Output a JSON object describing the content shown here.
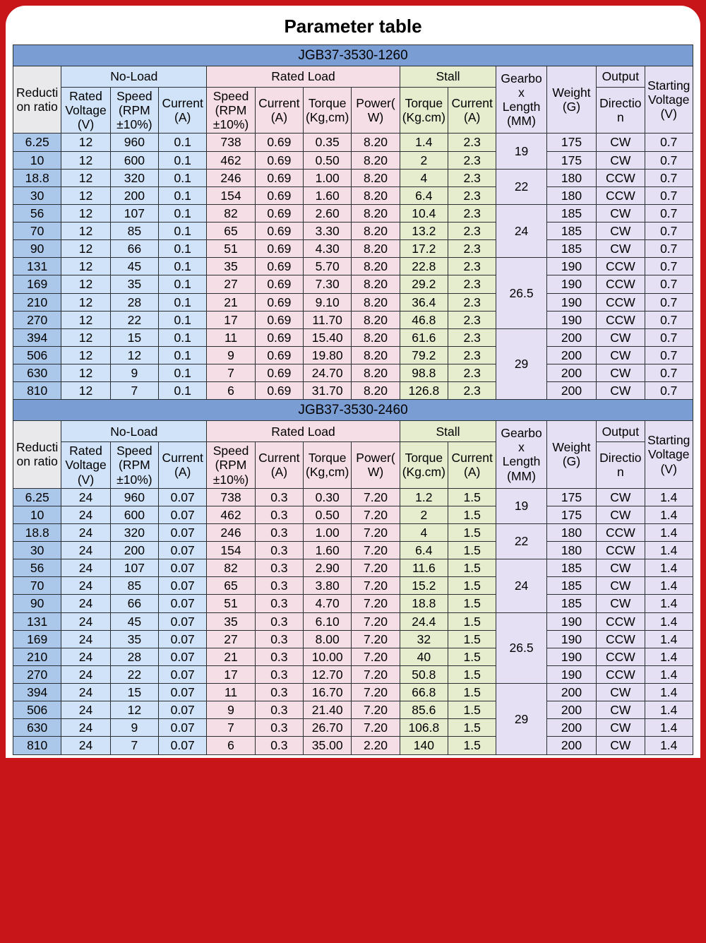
{
  "title": "Parameter table",
  "colors": {
    "page_bg": "#c8151a",
    "band": "#7a9ed4",
    "no_load": "#d1e3f8",
    "rated": "#f6dee6",
    "stall": "#e6ecce",
    "misc": "#e6e0f4",
    "gray": "#e9e9ec",
    "ratio": "#abc8ea",
    "border": "#2a2f33"
  },
  "group_headers": {
    "no_load": "No-Load",
    "rated": "Rated Load",
    "stall": "Stall",
    "output": "Output"
  },
  "columns": {
    "ratio": "Reduction ratio",
    "rv": "Rated Voltage (V)",
    "nl_speed": "Speed (RPM ±10%)",
    "nl_curr": "Current (A)",
    "rl_speed": "Speed (RPM ±10%)",
    "rl_curr": "Current (A)",
    "rl_torque": "Torque (Kg,cm)",
    "rl_power": "Power(W)",
    "st_torque": "Torque (Kg.cm)",
    "st_curr": "Current (A)",
    "gblen": "Gearbox Length (MM)",
    "weight": "Weight (G)",
    "dir": "Direction",
    "sv": "Starting Voltage(V)"
  },
  "tables": [
    {
      "model": "JGB37-3530-1260",
      "rows": [
        {
          "ratio": "6.25",
          "rv": "12",
          "nlS": "960",
          "nlA": "0.1",
          "rlS": "738",
          "rlA": "0.69",
          "rlT": "0.35",
          "rlW": "8.20",
          "stT": "1.4",
          "stA": "2.3",
          "gb": "19",
          "w": "175",
          "dir": "CW",
          "sv": "0.7"
        },
        {
          "ratio": "10",
          "rv": "12",
          "nlS": "600",
          "nlA": "0.1",
          "rlS": "462",
          "rlA": "0.69",
          "rlT": "0.50",
          "rlW": "8.20",
          "stT": "2",
          "stA": "2.3",
          "gb": "",
          "w": "175",
          "dir": "CW",
          "sv": "0.7"
        },
        {
          "ratio": "18.8",
          "rv": "12",
          "nlS": "320",
          "nlA": "0.1",
          "rlS": "246",
          "rlA": "0.69",
          "rlT": "1.00",
          "rlW": "8.20",
          "stT": "4",
          "stA": "2.3",
          "gb": "22",
          "w": "180",
          "dir": "CCW",
          "sv": "0.7"
        },
        {
          "ratio": "30",
          "rv": "12",
          "nlS": "200",
          "nlA": "0.1",
          "rlS": "154",
          "rlA": "0.69",
          "rlT": "1.60",
          "rlW": "8.20",
          "stT": "6.4",
          "stA": "2.3",
          "gb": "",
          "w": "180",
          "dir": "CCW",
          "sv": "0.7"
        },
        {
          "ratio": "56",
          "rv": "12",
          "nlS": "107",
          "nlA": "0.1",
          "rlS": "82",
          "rlA": "0.69",
          "rlT": "2.60",
          "rlW": "8.20",
          "stT": "10.4",
          "stA": "2.3",
          "gb": "24",
          "w": "185",
          "dir": "CW",
          "sv": "0.7"
        },
        {
          "ratio": "70",
          "rv": "12",
          "nlS": "85",
          "nlA": "0.1",
          "rlS": "65",
          "rlA": "0.69",
          "rlT": "3.30",
          "rlW": "8.20",
          "stT": "13.2",
          "stA": "2.3",
          "gb": "",
          "w": "185",
          "dir": "CW",
          "sv": "0.7"
        },
        {
          "ratio": "90",
          "rv": "12",
          "nlS": "66",
          "nlA": "0.1",
          "rlS": "51",
          "rlA": "0.69",
          "rlT": "4.30",
          "rlW": "8.20",
          "stT": "17.2",
          "stA": "2.3",
          "gb": "",
          "w": "185",
          "dir": "CW",
          "sv": "0.7"
        },
        {
          "ratio": "131",
          "rv": "12",
          "nlS": "45",
          "nlA": "0.1",
          "rlS": "35",
          "rlA": "0.69",
          "rlT": "5.70",
          "rlW": "8.20",
          "stT": "22.8",
          "stA": "2.3",
          "gb": "26.5",
          "w": "190",
          "dir": "CCW",
          "sv": "0.7"
        },
        {
          "ratio": "169",
          "rv": "12",
          "nlS": "35",
          "nlA": "0.1",
          "rlS": "27",
          "rlA": "0.69",
          "rlT": "7.30",
          "rlW": "8.20",
          "stT": "29.2",
          "stA": "2.3",
          "gb": "",
          "w": "190",
          "dir": "CCW",
          "sv": "0.7"
        },
        {
          "ratio": "210",
          "rv": "12",
          "nlS": "28",
          "nlA": "0.1",
          "rlS": "21",
          "rlA": "0.69",
          "rlT": "9.10",
          "rlW": "8.20",
          "stT": "36.4",
          "stA": "2.3",
          "gb": "",
          "w": "190",
          "dir": "CCW",
          "sv": "0.7"
        },
        {
          "ratio": "270",
          "rv": "12",
          "nlS": "22",
          "nlA": "0.1",
          "rlS": "17",
          "rlA": "0.69",
          "rlT": "11.70",
          "rlW": "8.20",
          "stT": "46.8",
          "stA": "2.3",
          "gb": "",
          "w": "190",
          "dir": "CCW",
          "sv": "0.7"
        },
        {
          "ratio": "394",
          "rv": "12",
          "nlS": "15",
          "nlA": "0.1",
          "rlS": "11",
          "rlA": "0.69",
          "rlT": "15.40",
          "rlW": "8.20",
          "stT": "61.6",
          "stA": "2.3",
          "gb": "29",
          "w": "200",
          "dir": "CW",
          "sv": "0.7"
        },
        {
          "ratio": "506",
          "rv": "12",
          "nlS": "12",
          "nlA": "0.1",
          "rlS": "9",
          "rlA": "0.69",
          "rlT": "19.80",
          "rlW": "8.20",
          "stT": "79.2",
          "stA": "2.3",
          "gb": "",
          "w": "200",
          "dir": "CW",
          "sv": "0.7"
        },
        {
          "ratio": "630",
          "rv": "12",
          "nlS": "9",
          "nlA": "0.1",
          "rlS": "7",
          "rlA": "0.69",
          "rlT": "24.70",
          "rlW": "8.20",
          "stT": "98.8",
          "stA": "2.3",
          "gb": "",
          "w": "200",
          "dir": "CW",
          "sv": "0.7"
        },
        {
          "ratio": "810",
          "rv": "12",
          "nlS": "7",
          "nlA": "0.1",
          "rlS": "6",
          "rlA": "0.69",
          "rlT": "31.70",
          "rlW": "8.20",
          "stT": "126.8",
          "stA": "2.3",
          "gb": "",
          "w": "200",
          "dir": "CW",
          "sv": "0.7"
        }
      ],
      "gb_spans": [
        2,
        2,
        3,
        4,
        4
      ]
    },
    {
      "model": "JGB37-3530-2460",
      "rows": [
        {
          "ratio": "6.25",
          "rv": "24",
          "nlS": "960",
          "nlA": "0.07",
          "rlS": "738",
          "rlA": "0.3",
          "rlT": "0.30",
          "rlW": "7.20",
          "stT": "1.2",
          "stA": "1.5",
          "gb": "19",
          "w": "175",
          "dir": "CW",
          "sv": "1.4"
        },
        {
          "ratio": "10",
          "rv": "24",
          "nlS": "600",
          "nlA": "0.07",
          "rlS": "462",
          "rlA": "0.3",
          "rlT": "0.50",
          "rlW": "7.20",
          "stT": "2",
          "stA": "1.5",
          "gb": "",
          "w": "175",
          "dir": "CW",
          "sv": "1.4"
        },
        {
          "ratio": "18.8",
          "rv": "24",
          "nlS": "320",
          "nlA": "0.07",
          "rlS": "246",
          "rlA": "0.3",
          "rlT": "1.00",
          "rlW": "7.20",
          "stT": "4",
          "stA": "1.5",
          "gb": "22",
          "w": "180",
          "dir": "CCW",
          "sv": "1.4"
        },
        {
          "ratio": "30",
          "rv": "24",
          "nlS": "200",
          "nlA": "0.07",
          "rlS": "154",
          "rlA": "0.3",
          "rlT": "1.60",
          "rlW": "7.20",
          "stT": "6.4",
          "stA": "1.5",
          "gb": "",
          "w": "180",
          "dir": "CCW",
          "sv": "1.4"
        },
        {
          "ratio": "56",
          "rv": "24",
          "nlS": "107",
          "nlA": "0.07",
          "rlS": "82",
          "rlA": "0.3",
          "rlT": "2.90",
          "rlW": "7.20",
          "stT": "11.6",
          "stA": "1.5",
          "gb": "24",
          "w": "185",
          "dir": "CW",
          "sv": "1.4"
        },
        {
          "ratio": "70",
          "rv": "24",
          "nlS": "85",
          "nlA": "0.07",
          "rlS": "65",
          "rlA": "0.3",
          "rlT": "3.80",
          "rlW": "7.20",
          "stT": "15.2",
          "stA": "1.5",
          "gb": "",
          "w": "185",
          "dir": "CW",
          "sv": "1.4"
        },
        {
          "ratio": "90",
          "rv": "24",
          "nlS": "66",
          "nlA": "0.07",
          "rlS": "51",
          "rlA": "0.3",
          "rlT": "4.70",
          "rlW": "7.20",
          "stT": "18.8",
          "stA": "1.5",
          "gb": "",
          "w": "185",
          "dir": "CW",
          "sv": "1.4"
        },
        {
          "ratio": "131",
          "rv": "24",
          "nlS": "45",
          "nlA": "0.07",
          "rlS": "35",
          "rlA": "0.3",
          "rlT": "6.10",
          "rlW": "7.20",
          "stT": "24.4",
          "stA": "1.5",
          "gb": "26.5",
          "w": "190",
          "dir": "CCW",
          "sv": "1.4"
        },
        {
          "ratio": "169",
          "rv": "24",
          "nlS": "35",
          "nlA": "0.07",
          "rlS": "27",
          "rlA": "0.3",
          "rlT": "8.00",
          "rlW": "7.20",
          "stT": "32",
          "stA": "1.5",
          "gb": "",
          "w": "190",
          "dir": "CCW",
          "sv": "1.4"
        },
        {
          "ratio": "210",
          "rv": "24",
          "nlS": "28",
          "nlA": "0.07",
          "rlS": "21",
          "rlA": "0.3",
          "rlT": "10.00",
          "rlW": "7.20",
          "stT": "40",
          "stA": "1.5",
          "gb": "",
          "w": "190",
          "dir": "CCW",
          "sv": "1.4"
        },
        {
          "ratio": "270",
          "rv": "24",
          "nlS": "22",
          "nlA": "0.07",
          "rlS": "17",
          "rlA": "0.3",
          "rlT": "12.70",
          "rlW": "7.20",
          "stT": "50.8",
          "stA": "1.5",
          "gb": "",
          "w": "190",
          "dir": "CCW",
          "sv": "1.4"
        },
        {
          "ratio": "394",
          "rv": "24",
          "nlS": "15",
          "nlA": "0.07",
          "rlS": "11",
          "rlA": "0.3",
          "rlT": "16.70",
          "rlW": "7.20",
          "stT": "66.8",
          "stA": "1.5",
          "gb": "29",
          "w": "200",
          "dir": "CW",
          "sv": "1.4"
        },
        {
          "ratio": "506",
          "rv": "24",
          "nlS": "12",
          "nlA": "0.07",
          "rlS": "9",
          "rlA": "0.3",
          "rlT": "21.40",
          "rlW": "7.20",
          "stT": "85.6",
          "stA": "1.5",
          "gb": "",
          "w": "200",
          "dir": "CW",
          "sv": "1.4"
        },
        {
          "ratio": "630",
          "rv": "24",
          "nlS": "9",
          "nlA": "0.07",
          "rlS": "7",
          "rlA": "0.3",
          "rlT": "26.70",
          "rlW": "7.20",
          "stT": "106.8",
          "stA": "1.5",
          "gb": "",
          "w": "200",
          "dir": "CW",
          "sv": "1.4"
        },
        {
          "ratio": "810",
          "rv": "24",
          "nlS": "7",
          "nlA": "0.07",
          "rlS": "6",
          "rlA": "0.3",
          "rlT": "35.00",
          "rlW": "2.20",
          "stT": "140",
          "stA": "1.5",
          "gb": "",
          "w": "200",
          "dir": "CW",
          "sv": "1.4"
        }
      ],
      "gb_spans": [
        2,
        2,
        3,
        4,
        4
      ]
    }
  ]
}
